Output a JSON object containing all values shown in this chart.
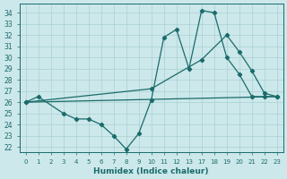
{
  "xlabel": "Humidex (Indice chaleur)",
  "bg_color": "#cce8ea",
  "grid_color": "#aad0d4",
  "line_color": "#1a6b6b",
  "ylim": [
    21.5,
    34.8
  ],
  "yticks": [
    22,
    23,
    24,
    25,
    26,
    27,
    28,
    29,
    30,
    31,
    32,
    33,
    34
  ],
  "xlabels": [
    "0",
    "1",
    "2",
    "3",
    "4",
    "5",
    "6",
    "7",
    "8",
    "9",
    "10",
    "11",
    "12",
    "13",
    "17",
    "18",
    "19",
    "20",
    "21",
    "22",
    "23"
  ],
  "series1_xi": [
    0,
    1,
    3,
    4,
    5,
    6,
    7,
    8,
    9,
    10,
    11,
    12,
    13,
    14,
    15,
    16,
    17,
    18,
    19,
    20
  ],
  "series1_y": [
    26.0,
    26.5,
    25.0,
    24.5,
    24.5,
    24.0,
    23.0,
    21.8,
    23.2,
    26.2,
    31.8,
    32.5,
    29.0,
    34.2,
    34.0,
    30.0,
    28.5,
    26.5,
    26.5,
    26.5
  ],
  "series2_xi": [
    0,
    20
  ],
  "series2_y": [
    26.0,
    26.5
  ],
  "series3_xi": [
    0,
    10,
    14,
    16,
    17,
    18,
    19,
    20
  ],
  "series3_y": [
    26.0,
    27.2,
    29.8,
    32.0,
    30.5,
    28.8,
    26.8,
    26.5
  ]
}
